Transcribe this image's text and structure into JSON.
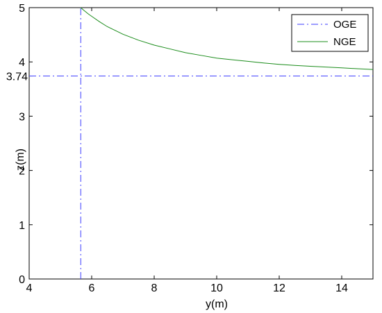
{
  "chart_data": {
    "type": "line",
    "title": "",
    "xlabel": "y(m)",
    "ylabel": "z(m)",
    "xlim": [
      4,
      15
    ],
    "ylim": [
      0,
      5
    ],
    "xticks": [
      4,
      6,
      8,
      10,
      12,
      14
    ],
    "yticks": [
      0,
      1,
      2,
      3,
      4,
      5
    ],
    "extra_ytick": {
      "value": 3.74,
      "label": "3.74"
    },
    "grid": false,
    "legend_position": "top-right",
    "series": [
      {
        "name": "OGE",
        "style": "dash-dot",
        "color": "#3b3bff",
        "segments": [
          {
            "x": [
              5.65,
              5.65
            ],
            "y": [
              0,
              5
            ]
          },
          {
            "x": [
              4,
              15
            ],
            "y": [
              3.74,
              3.74
            ]
          }
        ]
      },
      {
        "name": "NGE",
        "style": "solid",
        "color": "#1a8c1a",
        "x": [
          5.65,
          5.75,
          5.9,
          6.0,
          6.25,
          6.5,
          7.0,
          7.5,
          8.0,
          8.5,
          9.0,
          9.5,
          10.0,
          10.5,
          11.0,
          11.5,
          12.0,
          12.5,
          13.0,
          13.5,
          14.0,
          14.5,
          15.0
        ],
        "y": [
          5.0,
          4.95,
          4.88,
          4.84,
          4.74,
          4.65,
          4.51,
          4.4,
          4.31,
          4.24,
          4.17,
          4.12,
          4.07,
          4.04,
          4.01,
          3.98,
          3.955,
          3.935,
          3.92,
          3.905,
          3.89,
          3.875,
          3.86
        ]
      }
    ]
  }
}
